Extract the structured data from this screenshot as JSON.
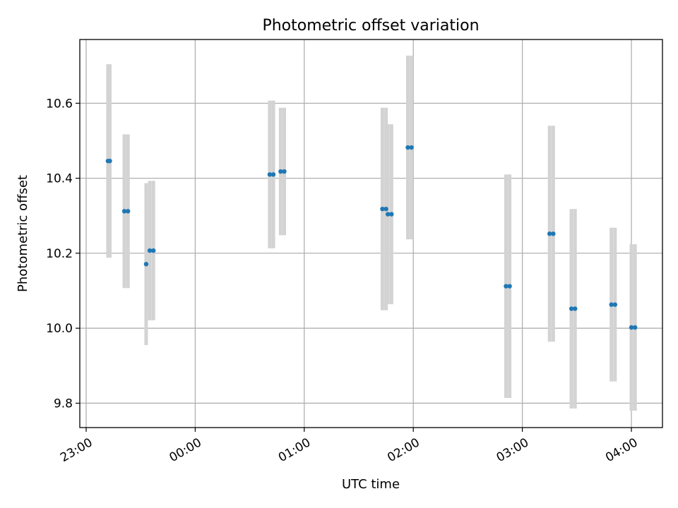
{
  "chart_data": {
    "type": "scatter",
    "title": "Photometric offset variation",
    "xlabel": "UTC time",
    "ylabel": "Photometric offset",
    "x_ticks": [
      "23:00",
      "00:00",
      "01:00",
      "02:00",
      "03:00",
      "04:00"
    ],
    "y_ticks": [
      "9.8",
      "10.0",
      "10.2",
      "10.4",
      "10.6"
    ],
    "grid": true,
    "colors": {
      "point": "#1f77b4",
      "errorbar": "#d3d3d3"
    },
    "points": [
      {
        "x": "23:12",
        "y": 10.446,
        "yerr": 0.258
      },
      {
        "x": "23:13",
        "y": 10.446,
        "yerr": 0.258
      },
      {
        "x": "23:21",
        "y": 10.312,
        "yerr": 0.205
      },
      {
        "x": "23:23",
        "y": 10.312,
        "yerr": 0.205
      },
      {
        "x": "23:33",
        "y": 10.171,
        "yerr": 0.216
      },
      {
        "x": "23:35",
        "y": 10.207,
        "yerr": 0.186
      },
      {
        "x": "23:37",
        "y": 10.207,
        "yerr": 0.186
      },
      {
        "x": "00:41",
        "y": 10.41,
        "yerr": 0.197
      },
      {
        "x": "00:43",
        "y": 10.41,
        "yerr": 0.197
      },
      {
        "x": "00:47",
        "y": 10.418,
        "yerr": 0.17
      },
      {
        "x": "00:49",
        "y": 10.418,
        "yerr": 0.17
      },
      {
        "x": "01:43",
        "y": 10.318,
        "yerr": 0.27
      },
      {
        "x": "01:45",
        "y": 10.318,
        "yerr": 0.27
      },
      {
        "x": "01:46",
        "y": 10.304,
        "yerr": 0.24
      },
      {
        "x": "01:48",
        "y": 10.304,
        "yerr": 0.24
      },
      {
        "x": "01:57",
        "y": 10.482,
        "yerr": 0.245
      },
      {
        "x": "01:59",
        "y": 10.482,
        "yerr": 0.245
      },
      {
        "x": "02:51",
        "y": 10.112,
        "yerr": 0.298
      },
      {
        "x": "02:53",
        "y": 10.112,
        "yerr": 0.298
      },
      {
        "x": "03:15",
        "y": 10.252,
        "yerr": 0.288
      },
      {
        "x": "03:17",
        "y": 10.252,
        "yerr": 0.288
      },
      {
        "x": "03:27",
        "y": 10.052,
        "yerr": 0.266
      },
      {
        "x": "03:29",
        "y": 10.052,
        "yerr": 0.266
      },
      {
        "x": "03:49",
        "y": 10.063,
        "yerr": 0.205
      },
      {
        "x": "03:51",
        "y": 10.063,
        "yerr": 0.205
      },
      {
        "x": "04:00",
        "y": 10.002,
        "yerr": 0.222
      },
      {
        "x": "04:02",
        "y": 10.002,
        "yerr": 0.222
      }
    ]
  }
}
